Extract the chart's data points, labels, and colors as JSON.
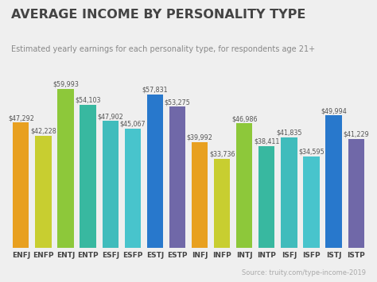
{
  "categories": [
    "ENFJ",
    "ENFP",
    "ENTJ",
    "ENTP",
    "ESFJ",
    "ESFP",
    "ESTJ",
    "ESTP",
    "INFJ",
    "INFP",
    "INTJ",
    "INTP",
    "ISFJ",
    "ISFP",
    "ISTJ",
    "ISTP"
  ],
  "values": [
    47292,
    42228,
    59993,
    54103,
    47902,
    45067,
    57831,
    53275,
    39992,
    33736,
    46986,
    38411,
    41835,
    34595,
    49994,
    41229
  ],
  "bar_colors": [
    "#E8A020",
    "#C8CE30",
    "#8DC83A",
    "#38B8A0",
    "#40BCBC",
    "#48C4CC",
    "#2878CC",
    "#7068A8",
    "#E8A020",
    "#C8CE30",
    "#8DC83A",
    "#38B8A0",
    "#40BCBC",
    "#48C4CC",
    "#2878CC",
    "#7068A8"
  ],
  "title": "AVERAGE INCOME BY PERSONALITY TYPE",
  "subtitle": "Estimated yearly earnings for each personality type, for respondents age 21+",
  "source": "Source: truity.com/type-income-2019",
  "background_color": "#efefef",
  "ylim": [
    0,
    68000
  ],
  "title_fontsize": 11.5,
  "subtitle_fontsize": 7,
  "label_fontsize": 5.8,
  "tick_fontsize": 6.5,
  "source_fontsize": 6
}
